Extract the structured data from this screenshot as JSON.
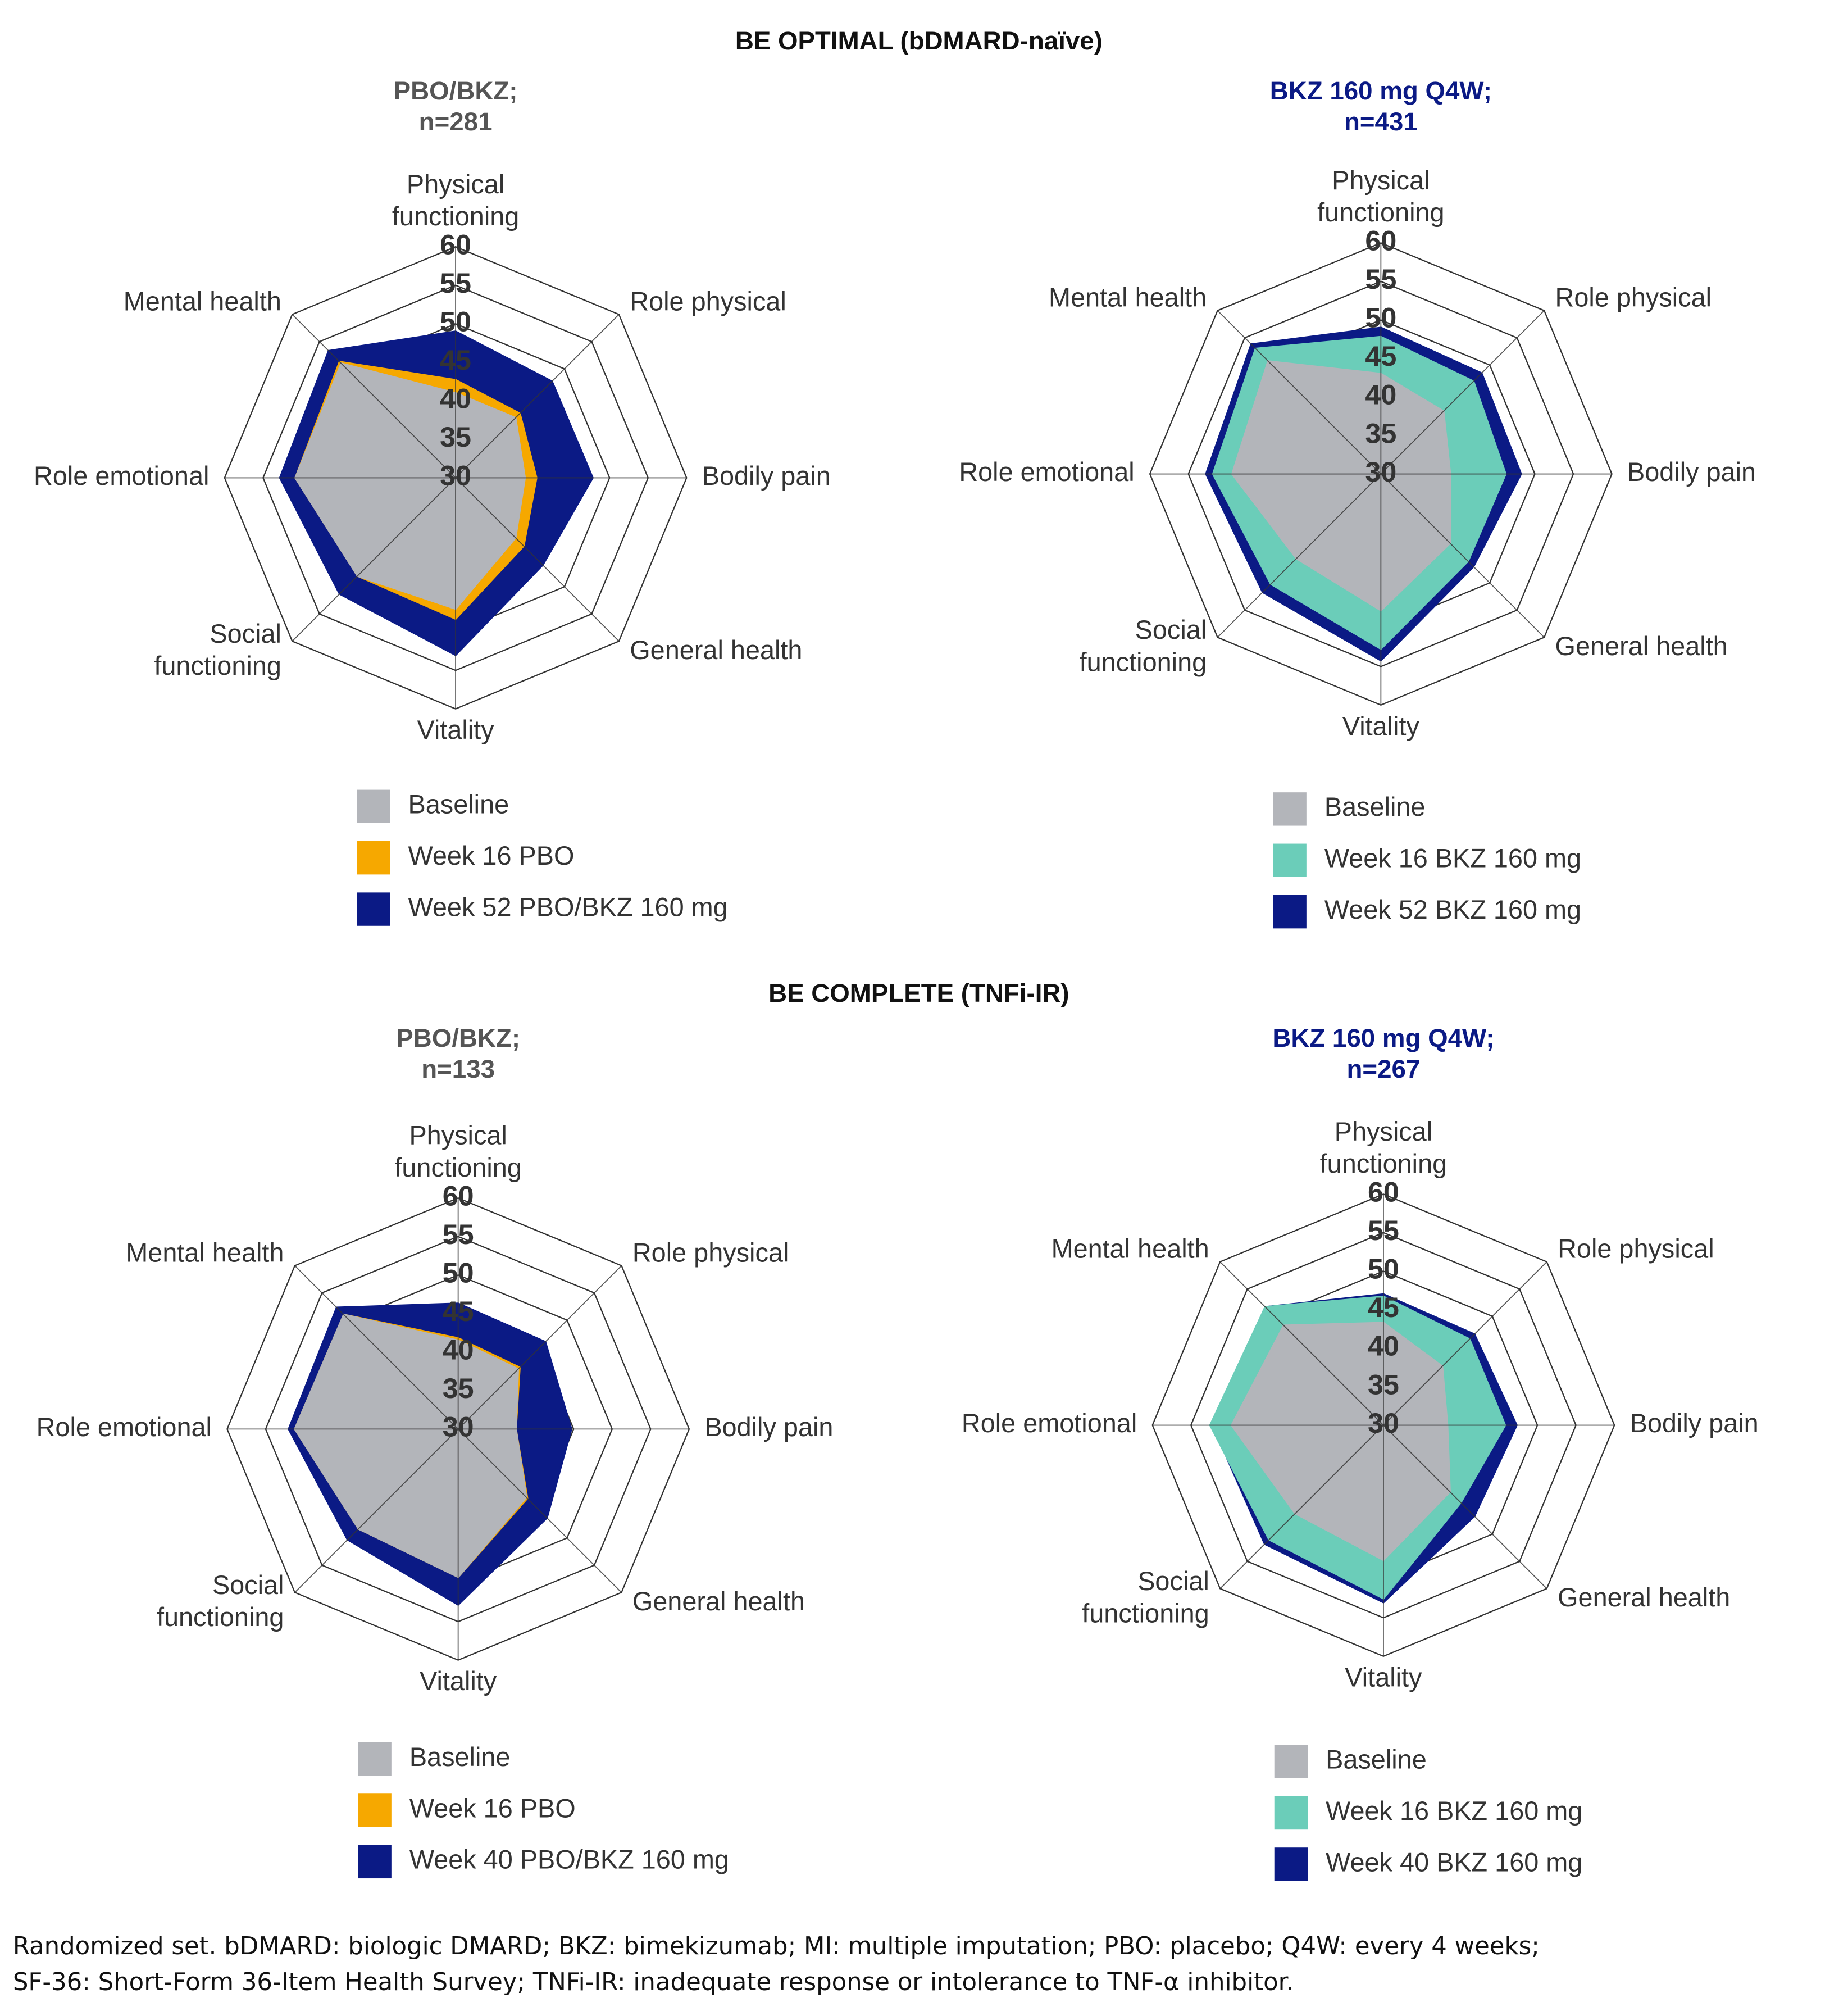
{
  "sections": [
    "BE OPTIMAL (bDMARD-naïve)",
    "BE COMPLETE (TNFi-IR)"
  ],
  "footnote": [
    "Randomized set. bDMARD: biologic DMARD; BKZ: bimekizumab; MI: multiple imputation; PBO: placebo; Q4W: every 4 weeks;",
    "SF-36: Short-Form 36-Item Health Survey; TNFi-IR: inadequate response or intolerance to TNF-α inhibitor."
  ],
  "chart_data": [
    {
      "type": "radar",
      "title": "PBO/BKZ;",
      "subtitle": "n=281",
      "title_color": "#555555",
      "categories": [
        "Physical\nfunctioning",
        "Role physical",
        "Bodily pain",
        "General health",
        "Vitality",
        "Social\nfunctioning",
        "Role emotional",
        "Mental health"
      ],
      "ylim": [
        30,
        60
      ],
      "yticks": [
        30,
        35,
        40,
        45,
        50,
        55,
        60
      ],
      "series": [
        {
          "name": "Baseline",
          "color": "#b3b5ba",
          "values": [
            41,
            41,
            39,
            41,
            47,
            48,
            50.8,
            51
          ]
        },
        {
          "name": "Week 16 PBO",
          "color": "#f6a800",
          "values": [
            42.7,
            41.8,
            40.5,
            42.5,
            48.3,
            48,
            50.8,
            51.3
          ]
        },
        {
          "name": "Week 52 PBO/BKZ 160 mg",
          "color": "#0b1a85",
          "values": [
            49,
            47.7,
            47.8,
            46,
            53,
            51.3,
            52.8,
            53.3
          ]
        }
      ]
    },
    {
      "type": "radar",
      "title": "BKZ 160 mg Q4W;",
      "subtitle": "n=431",
      "title_color": "#0b1a85",
      "categories": [
        "Physical\nfunctioning",
        "Role physical",
        "Bodily pain",
        "General health",
        "Vitality",
        "Social\nfunctioning",
        "Role emotional",
        "Mental health"
      ],
      "ylim": [
        30,
        60
      ],
      "yticks": [
        30,
        35,
        40,
        45,
        50,
        55,
        60
      ],
      "series": [
        {
          "name": "Baseline",
          "color": "#b3b5ba",
          "values": [
            43,
            41.5,
            39,
            42.7,
            47.7,
            45.5,
            49.3,
            50.7
          ]
        },
        {
          "name": "Week 16 BKZ 160 mg",
          "color": "#6bcdb9",
          "values": [
            47.8,
            47,
            46.2,
            46,
            52.7,
            50.2,
            51.8,
            53
          ]
        },
        {
          "name": "Week 52 BKZ 160 mg",
          "color": "#0b1a85",
          "values": [
            49,
            48.5,
            48.2,
            47,
            54.2,
            51.7,
            52.7,
            53.8
          ]
        }
      ]
    },
    {
      "type": "radar",
      "title": "PBO/BKZ;",
      "subtitle": "n=133",
      "title_color": "#555555",
      "categories": [
        "Physical\nfunctioning",
        "Role physical",
        "Bodily pain",
        "General health",
        "Vitality",
        "Social\nfunctioning",
        "Role emotional",
        "Mental health"
      ],
      "ylim": [
        30,
        60
      ],
      "yticks": [
        30,
        35,
        40,
        45,
        50,
        55,
        60
      ],
      "series": [
        {
          "name": "Baseline",
          "color": "#b3b5ba",
          "values": [
            41.5,
            41,
            37.5,
            42.5,
            49.2,
            48.3,
            51.2,
            51
          ]
        },
        {
          "name": "Week 16 PBO",
          "color": "#f6a800",
          "values": [
            41.8,
            41.3,
            37.5,
            42.7,
            49.2,
            48.3,
            51.2,
            51
          ]
        },
        {
          "name": "Week 40 PBO/BKZ 160 mg",
          "color": "#0b1a85",
          "values": [
            46.3,
            46,
            44.7,
            46.3,
            52.8,
            50.3,
            52,
            52.3
          ]
        }
      ]
    },
    {
      "type": "radar",
      "title": "BKZ 160 mg Q4W;",
      "subtitle": "n=267",
      "title_color": "#0b1a85",
      "categories": [
        "Physical\nfunctioning",
        "Role physical",
        "Bodily pain",
        "General health",
        "Vitality",
        "Social\nfunctioning",
        "Role emotional",
        "Mental health"
      ],
      "ylim": [
        30,
        60
      ],
      "yticks": [
        30,
        35,
        40,
        45,
        50,
        55,
        60
      ],
      "series": [
        {
          "name": "Baseline",
          "color": "#b3b5ba",
          "values": [
            43.3,
            40.8,
            38.3,
            42.2,
            47.5,
            46.2,
            49.7,
            48.3
          ]
        },
        {
          "name": "Week 16 BKZ 160 mg",
          "color": "#6bcdb9",
          "values": [
            46.7,
            45.8,
            45.8,
            44.2,
            52.5,
            51,
            52.5,
            51.7
          ]
        },
        {
          "name": "Week 40 BKZ 160 mg",
          "color": "#0b1a85",
          "values": [
            47,
            46.7,
            47.3,
            46.7,
            53,
            51.8,
            52.2,
            51.7
          ]
        }
      ]
    }
  ]
}
